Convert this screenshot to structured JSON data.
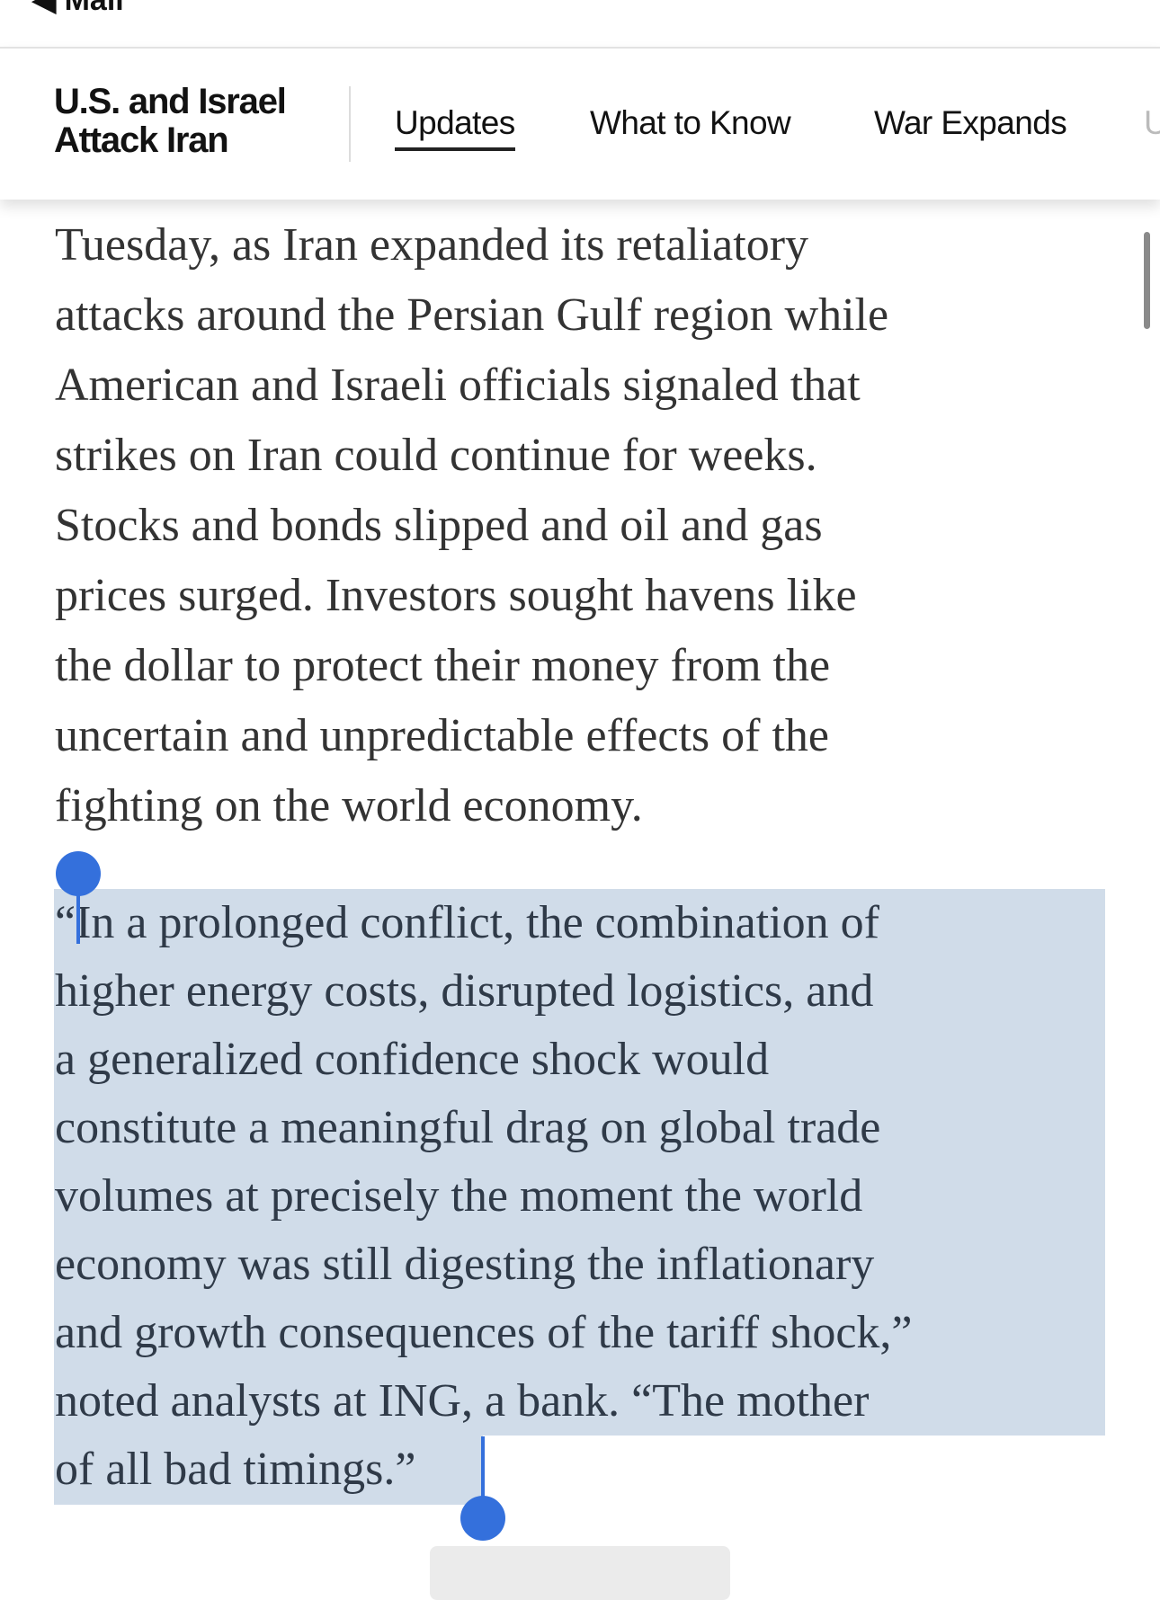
{
  "status_bar": {
    "back_label": "◀ Mail"
  },
  "header": {
    "title_line1": "U.S. and Israel",
    "title_line2": "Attack Iran",
    "tabs": [
      {
        "label": "Updates",
        "active": true
      },
      {
        "label": "What to Know",
        "active": false
      },
      {
        "label": "War Expands",
        "active": false
      },
      {
        "label": "U",
        "active": false
      }
    ]
  },
  "article": {
    "paragraph1": [
      "Tuesday, as Iran expanded its retaliatory",
      "attacks around the Persian Gulf region while",
      "American and Israeli officials signaled that",
      "strikes on Iran could continue for weeks.",
      "Stocks and bonds slipped and oil and gas",
      "prices surged. Investors sought havens like",
      "the dollar to protect their money from the",
      "uncertain and unpredictable effects of the",
      "fighting on the world economy."
    ],
    "paragraph2": [
      "“In a prolonged conflict, the combination of",
      "higher energy costs, disrupted logistics, and",
      "a generalized confidence shock would",
      "constitute a meaningful drag on global trade",
      "volumes at precisely the moment the world",
      "economy was still digesting the inflationary",
      "and growth consequences of the tariff shock,”",
      "noted analysts at ING, a bank. “The mother",
      "of all bad timings.”"
    ],
    "selection_state": "paragraph2 selected"
  },
  "colors": {
    "selection": "#d0dce9",
    "handle": "#3470dc"
  }
}
